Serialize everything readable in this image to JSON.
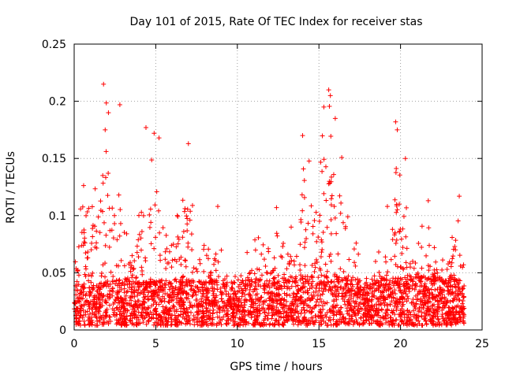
{
  "chart_data": {
    "type": "scatter",
    "title": "Day 101 of 2015, Rate Of TEC Index for receiver stas",
    "xlabel": "GPS time / hours",
    "ylabel": "ROTI / TECUs",
    "xlim": [
      0,
      25
    ],
    "ylim": [
      0,
      0.25
    ],
    "xticks": [
      0,
      5,
      10,
      15,
      20,
      25
    ],
    "yticks": [
      0,
      0.05,
      0.1,
      0.15,
      0.2,
      0.25
    ],
    "xtick_labels": [
      "0",
      "5",
      "10",
      "15",
      "20",
      "25"
    ],
    "ytick_labels": [
      "0",
      "0.05",
      "0.1",
      "0.15",
      "0.2",
      "0.25"
    ],
    "grid": true,
    "marker": "+",
    "marker_color": "#ff0000",
    "envelope_hint": [
      [
        0.0,
        0.045
      ],
      [
        0.5,
        0.13
      ],
      [
        1.0,
        0.12
      ],
      [
        1.5,
        0.14
      ],
      [
        2.0,
        0.21
      ],
      [
        2.5,
        0.14
      ],
      [
        3.0,
        0.1
      ],
      [
        3.5,
        0.06
      ],
      [
        4.0,
        0.12
      ],
      [
        4.5,
        0.175
      ],
      [
        5.0,
        0.16
      ],
      [
        5.5,
        0.125
      ],
      [
        6.0,
        0.08
      ],
      [
        6.5,
        0.13
      ],
      [
        7.0,
        0.16
      ],
      [
        7.5,
        0.1
      ],
      [
        8.0,
        0.07
      ],
      [
        8.5,
        0.08
      ],
      [
        9.0,
        0.11
      ],
      [
        9.5,
        0.05
      ],
      [
        10.0,
        0.05
      ],
      [
        10.5,
        0.06
      ],
      [
        11.0,
        0.08
      ],
      [
        11.5,
        0.09
      ],
      [
        12.0,
        0.07
      ],
      [
        12.5,
        0.1
      ],
      [
        13.0,
        0.1
      ],
      [
        13.5,
        0.1
      ],
      [
        14.0,
        0.17
      ],
      [
        14.5,
        0.15
      ],
      [
        15.0,
        0.16
      ],
      [
        15.5,
        0.2
      ],
      [
        16.0,
        0.19
      ],
      [
        16.5,
        0.14
      ],
      [
        17.0,
        0.09
      ],
      [
        17.5,
        0.06
      ],
      [
        18.0,
        0.04
      ],
      [
        18.5,
        0.06
      ],
      [
        19.0,
        0.08
      ],
      [
        19.5,
        0.18
      ],
      [
        20.0,
        0.15
      ],
      [
        20.5,
        0.09
      ],
      [
        21.0,
        0.07
      ],
      [
        21.5,
        0.1
      ],
      [
        22.0,
        0.07
      ],
      [
        22.5,
        0.07
      ],
      [
        23.0,
        0.07
      ],
      [
        23.5,
        0.115
      ],
      [
        23.9,
        0.05
      ]
    ],
    "baseline_hint": [
      [
        0.0,
        0.015
      ],
      [
        2.0,
        0.02
      ],
      [
        5.0,
        0.02
      ],
      [
        10.0,
        0.02
      ],
      [
        15.0,
        0.025
      ],
      [
        18.0,
        0.02
      ],
      [
        21.0,
        0.025
      ],
      [
        23.9,
        0.02
      ]
    ],
    "sample_points": [
      {
        "x": 1.8,
        "y": 0.215
      },
      {
        "x": 2.1,
        "y": 0.19
      },
      {
        "x": 2.8,
        "y": 0.197
      },
      {
        "x": 1.9,
        "y": 0.175
      },
      {
        "x": 4.4,
        "y": 0.177
      },
      {
        "x": 4.9,
        "y": 0.172
      },
      {
        "x": 5.2,
        "y": 0.168
      },
      {
        "x": 7.0,
        "y": 0.163
      },
      {
        "x": 15.3,
        "y": 0.195
      },
      {
        "x": 15.6,
        "y": 0.21
      },
      {
        "x": 15.7,
        "y": 0.205
      },
      {
        "x": 16.0,
        "y": 0.185
      },
      {
        "x": 14.0,
        "y": 0.17
      },
      {
        "x": 19.7,
        "y": 0.182
      },
      {
        "x": 19.8,
        "y": 0.175
      },
      {
        "x": 20.3,
        "y": 0.15
      },
      {
        "x": 21.7,
        "y": 0.113
      },
      {
        "x": 23.6,
        "y": 0.117
      },
      {
        "x": 8.8,
        "y": 0.108
      },
      {
        "x": 12.4,
        "y": 0.107
      }
    ]
  }
}
